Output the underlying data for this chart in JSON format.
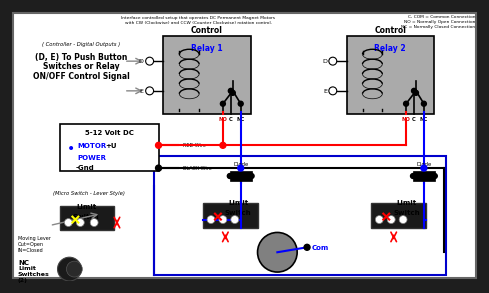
{
  "bg_color": "#1a1a1a",
  "inner_bg": "#ffffff",
  "title_line1": "Interface controlled setup that operates DC Permanent Magnet Motors",
  "title_line2": "with CW (Clockwise) and CCW (Counter Clockwise) rotation control.",
  "legend_com": "C, COM = Common Connection",
  "legend_no": "NO = Normally Open Connection",
  "legend_nc": "NC = Normally Closed Connection",
  "relay1_title": "Control",
  "relay1_subtitle": "Relay 1",
  "relay2_title": "Control",
  "relay2_subtitle": "Relay 2",
  "controller_label": "( Controller - Digital Outputs )",
  "controller_desc1": "(D, E) To Push Button",
  "controller_desc2": "Switches or Relay",
  "controller_desc3": "ON/OFF Control Signal",
  "power_title": "5-12 Volt DC",
  "power_motor": "MOTOR",
  "power_plus": "+U",
  "power_power": "POWER",
  "power_gnd": "-Gnd",
  "red_wire": "RED Wire",
  "black_wire": "BLACK Wire",
  "micro_switch_label": "(Micro Switch - Lever Style)",
  "limit_switch1": "Limit",
  "limit_switch2": "Switch",
  "diode": "Diode",
  "moving_lever1": "Moving Lever",
  "moving_lever2": "Out=Open",
  "moving_lever3": "IN=Closed",
  "com_label": "Com",
  "nc_label": "NC",
  "no_label": "NO",
  "c_label": "C",
  "d_label": "D",
  "e_label": "E",
  "nc_bottom": "NC",
  "switches_label1": "Limit",
  "switches_label2": "Switches",
  "switches_label3": "(2)",
  "blue_color": "#0000ff",
  "red_color": "#ff0000",
  "dark_red": "#cc0000",
  "gray_color": "#888888",
  "relay_gray": "#aaaaaa",
  "light_gray": "#b0b0b0",
  "motor_gray": "#808080",
  "black": "#000000",
  "white": "#ffffff",
  "dark_bg": "#1e1e1e",
  "border_blue": "#0000cc"
}
